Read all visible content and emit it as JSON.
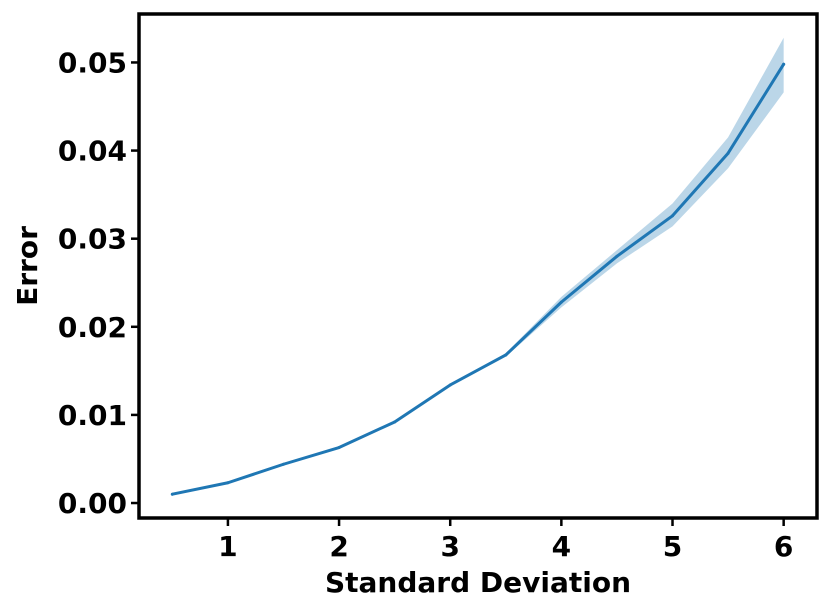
{
  "chart_data": {
    "type": "line",
    "xlabel": "Standard Deviation",
    "ylabel": "Error",
    "xlim": [
      0.2,
      6.3
    ],
    "ylim": [
      -0.0017,
      0.0555
    ],
    "xticks": [
      1,
      2,
      3,
      4,
      5,
      6
    ],
    "yticks": [
      0.0,
      0.01,
      0.02,
      0.03,
      0.04,
      0.05
    ],
    "ytick_labels": [
      "0.00",
      "0.01",
      "0.02",
      "0.03",
      "0.04",
      "0.05"
    ],
    "grid": false,
    "series": [
      {
        "color": "#1f77b4",
        "band_color": "#1f77b4",
        "x": [
          0.5,
          1.0,
          1.5,
          2.0,
          2.5,
          3.0,
          3.5,
          4.0,
          4.5,
          5.0,
          5.5,
          6.0
        ],
        "y": [
          0.001,
          0.0023,
          0.0044,
          0.0063,
          0.0092,
          0.0134,
          0.0168,
          0.0228,
          0.028,
          0.0326,
          0.0397,
          0.0498
        ],
        "lower": [
          0.0009,
          0.0022,
          0.0043,
          0.0062,
          0.0091,
          0.0133,
          0.0166,
          0.0222,
          0.0272,
          0.0314,
          0.038,
          0.0466
        ],
        "upper": [
          0.0011,
          0.0024,
          0.0045,
          0.0064,
          0.0093,
          0.0135,
          0.017,
          0.0234,
          0.0287,
          0.034,
          0.0415,
          0.0528
        ]
      }
    ]
  }
}
